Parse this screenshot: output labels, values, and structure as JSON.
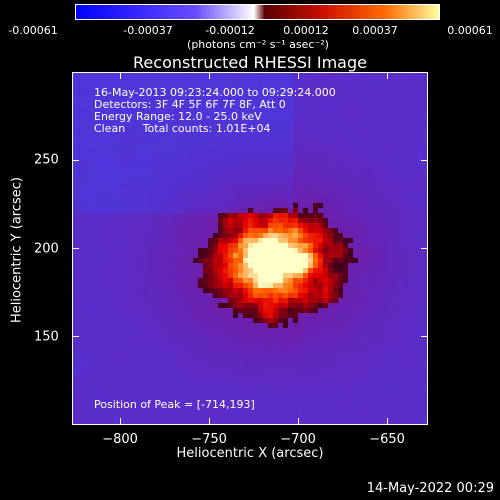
{
  "colorbar": {
    "tick_labels": [
      "-0.00061",
      "-0.00037",
      "-0.00012",
      "0.00012",
      "0.00037",
      "0.00061"
    ],
    "units": "(photons cm⁻² s⁻¹ asec⁻²)",
    "colors": [
      "#0000ff",
      "#6a4cff",
      "#ffffff",
      "#5a0000",
      "#cc1000",
      "#ff6a00",
      "#ffffa0"
    ]
  },
  "plot": {
    "title": "Reconstructed RHESSI Image",
    "annotation_lines": [
      "16-May-2013 09:23:24.000 to 09:29:24.000",
      "Detectors: 3F 4F 5F 6F 7F 8F, Att 0",
      "Energy Range: 12.0 - 25.0 keV",
      "Clean     Total counts: 1.01E+04"
    ],
    "peak_text": "Position of Peak = [-714,193]",
    "xlabel": "Heliocentric X (arcsec)",
    "ylabel": "Heliocentric Y (arcsec)",
    "x_ticks": [
      "-800",
      "-750",
      "-700",
      "-650"
    ],
    "y_ticks": [
      "250",
      "200",
      "150"
    ],
    "x_range": [
      -827,
      -627
    ],
    "y_range": [
      100,
      300
    ],
    "peak": [
      -714,
      193
    ]
  },
  "timestamp": "14-May-2022 00:29"
}
